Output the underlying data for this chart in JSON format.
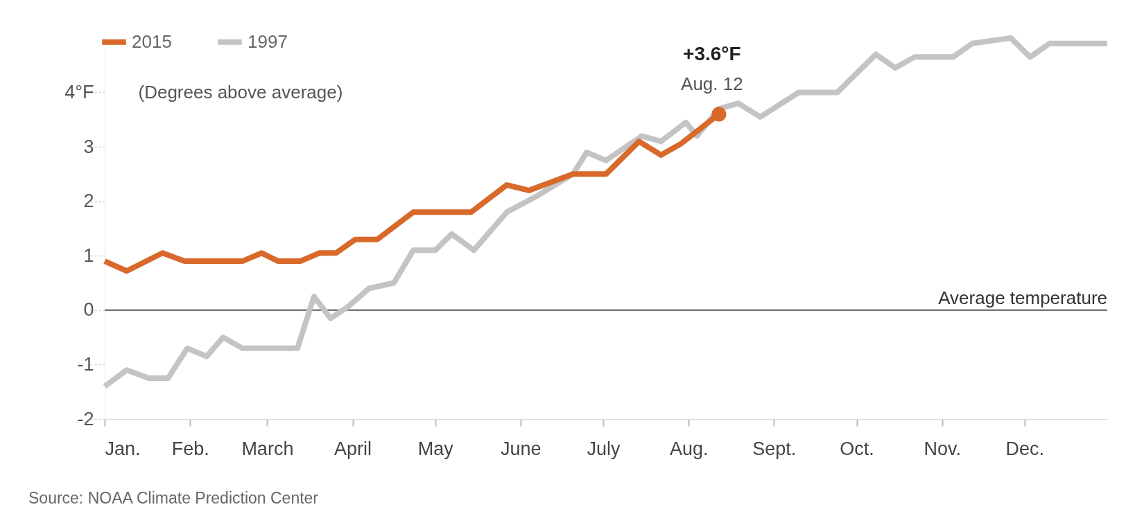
{
  "chart_data": {
    "type": "line",
    "ylabel": "(Degrees above average)",
    "series": [
      {
        "name": "2015",
        "color": "#d8692a",
        "x": [
          "--01-01",
          "--01-09",
          "--01-22",
          "--01-30",
          "--02-20",
          "--02-27",
          "--03-05",
          "--03-13",
          "--03-20",
          "--03-26",
          "--04-02",
          "--04-10",
          "--04-23",
          "--05-14",
          "--05-27",
          "--06-04",
          "--06-20",
          "--07-02",
          "--07-14",
          "--07-22",
          "--07-29",
          "--08-12"
        ],
        "values": [
          0.9,
          0.72,
          1.05,
          0.9,
          0.9,
          1.05,
          0.9,
          0.9,
          1.05,
          1.05,
          1.3,
          1.3,
          1.8,
          1.8,
          2.3,
          2.2,
          2.5,
          2.5,
          3.1,
          2.85,
          3.05,
          3.6
        ]
      },
      {
        "name": "1997",
        "color": "#c4c4c4",
        "x": [
          "--01-01",
          "--01-09",
          "--01-17",
          "--01-24",
          "--01-31",
          "--02-07",
          "--02-13",
          "--02-20",
          "--03-12",
          "--03-18",
          "--03-24",
          "--03-30",
          "--04-07",
          "--04-16",
          "--04-23",
          "--05-01",
          "--05-07",
          "--05-15",
          "--05-27",
          "--06-07",
          "--06-20",
          "--06-25",
          "--07-02",
          "--07-15",
          "--07-22",
          "--07-31",
          "--08-04",
          "--08-12",
          "--08-19",
          "--08-27",
          "--09-10",
          "--09-24",
          "--10-08",
          "--10-15",
          "--10-22",
          "--11-05",
          "--11-12",
          "--11-26",
          "--12-03",
          "--12-10",
          "--12-31"
        ],
        "values": [
          -1.4,
          -1.1,
          -1.25,
          -1.25,
          -0.7,
          -0.85,
          -0.5,
          -0.7,
          -0.7,
          0.25,
          -0.15,
          0.05,
          0.4,
          0.5,
          1.1,
          1.1,
          1.4,
          1.1,
          1.8,
          2.1,
          2.5,
          2.9,
          2.75,
          3.2,
          3.1,
          3.45,
          3.2,
          3.7,
          3.8,
          3.55,
          4.0,
          4.0,
          4.7,
          4.45,
          4.65,
          4.65,
          4.9,
          5.0,
          4.65,
          4.9,
          4.9
        ]
      },
      {
        "type": "scatter",
        "color": "#d8692a",
        "x": [
          "--08-12"
        ],
        "values": [
          3.6
        ]
      }
    ],
    "xlim": [
      "--01-01",
      "--12-31"
    ],
    "xticks": [
      {
        "value": "--01-01",
        "label": "Jan."
      },
      {
        "value": "--02-01",
        "label": "Feb."
      },
      {
        "value": "--03-01",
        "label": "March"
      },
      {
        "value": "--04-01",
        "label": "April"
      },
      {
        "value": "--05-01",
        "label": "May"
      },
      {
        "value": "--06-01",
        "label": "June"
      },
      {
        "value": "--07-01",
        "label": "July"
      },
      {
        "value": "--08-01",
        "label": "Aug."
      },
      {
        "value": "--09-01",
        "label": "Sept."
      },
      {
        "value": "--10-01",
        "label": "Oct."
      },
      {
        "value": "--11-01",
        "label": "Nov."
      },
      {
        "value": "--12-01",
        "label": "Dec."
      }
    ],
    "ylim": [
      -2,
      5.1
    ],
    "yticks": [
      -2,
      -1,
      0,
      1,
      2,
      3,
      {
        "value": 4,
        "label": "4°F"
      }
    ],
    "legend": "top left",
    "ref_lines": [
      {
        "axis": "y",
        "value": 0,
        "label": "Average temperature",
        "color": "#555555"
      }
    ],
    "annotations": [
      {
        "text": "+3.6°F",
        "x": "--08-12",
        "y": 3.6
      },
      {
        "text": "Aug. 12",
        "x": "--08-12",
        "y": 3.6
      },
      "Source: NOAA Climate Prediction Center"
    ]
  }
}
